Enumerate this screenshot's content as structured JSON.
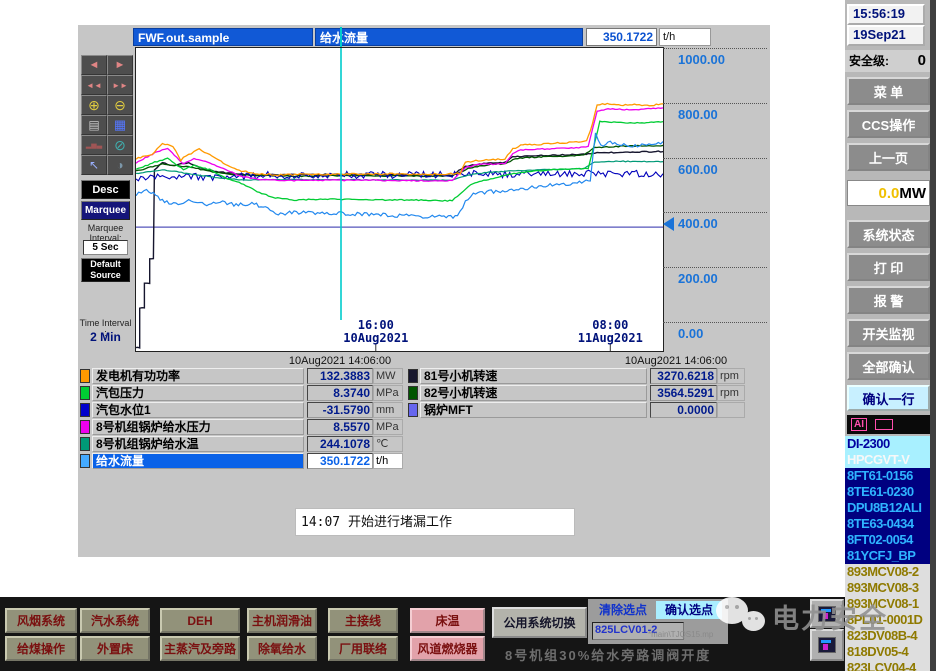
{
  "header": {
    "source": "FWF.out.sample",
    "tag": "给水流量",
    "value": "350.1722",
    "unit": "t/h"
  },
  "toolbar": {
    "icons": [
      {
        "name": "step-back-icon",
        "glyph": "◄",
        "color": "#e08585",
        "size": 11
      },
      {
        "name": "step-forward-icon",
        "glyph": "►",
        "color": "#e08585",
        "size": 11
      },
      {
        "name": "fast-back-icon",
        "glyph": "◄◄",
        "color": "#e08585",
        "size": 8
      },
      {
        "name": "fast-forward-icon",
        "glyph": "►►",
        "color": "#e08585",
        "size": 8
      },
      {
        "name": "zoom-in-icon",
        "glyph": "⊕",
        "color": "#e0cc40",
        "size": 14
      },
      {
        "name": "zoom-out-icon",
        "glyph": "⊖",
        "color": "#e0cc40",
        "size": 14
      },
      {
        "name": "snapshot-icon",
        "glyph": "▤",
        "color": "#c8c8c8",
        "size": 12
      },
      {
        "name": "table-view-icon",
        "glyph": "▦",
        "color": "#5577ff",
        "size": 13
      },
      {
        "name": "histogram-icon",
        "glyph": "▂▅▃",
        "color": "#a05555",
        "size": 7
      },
      {
        "name": "disable-icon",
        "glyph": "⊘",
        "color": "#3fb0b0",
        "size": 14
      },
      {
        "name": "pointer-icon",
        "glyph": "↖",
        "color": "#9ab0ff",
        "size": 12
      },
      {
        "name": "audio-icon",
        "glyph": "◑",
        "color": "#7b96a8",
        "size": 12
      }
    ],
    "desc": "Desc",
    "marquee": "Marquee",
    "marquee_interval_label": "Marquee Interval:",
    "marquee_interval": "5 Sec",
    "default_source": "Default Source",
    "time_interval_label": "Time Interval :",
    "time_interval": "2 Min"
  },
  "chart_data": {
    "type": "line",
    "ylim": [
      0,
      1000
    ],
    "y_ticks": [
      {
        "v": 1000,
        "label": "1000.00"
      },
      {
        "v": 800,
        "label": "800.00"
      },
      {
        "v": 600,
        "label": "600.00"
      },
      {
        "v": 400,
        "label": "400.00"
      },
      {
        "v": 200,
        "label": "200.00"
      },
      {
        "v": 0,
        "label": "0.00"
      }
    ],
    "marker_value": 400,
    "cursor_x": 0.389,
    "cursor_color": "#00cccc",
    "x_ticks": [
      {
        "pos": 0.455,
        "time": "16:00",
        "date": "10Aug2021"
      },
      {
        "pos": 0.9,
        "time": "08:00",
        "date": "11Aug2021"
      }
    ],
    "footer_times": [
      "10Aug2021  14:06:00",
      "10Aug2021  14:06:00"
    ],
    "series": [
      {
        "name": "锅炉MFT",
        "color": "#5555bb",
        "noise": 0,
        "width": 1.3,
        "points": [
          [
            0,
            350
          ],
          [
            1,
            350
          ]
        ]
      },
      {
        "name": "81号小机转速",
        "color": "#16162e",
        "noise": 2,
        "width": 1.4,
        "points": [
          [
            0,
            -90
          ],
          [
            0.007,
            -90
          ],
          [
            0.007,
            55
          ],
          [
            0.016,
            55
          ],
          [
            0.016,
            145
          ],
          [
            0.026,
            145
          ],
          [
            0.026,
            235
          ],
          [
            0.033,
            235
          ],
          [
            0.035,
            560
          ],
          [
            0.05,
            585
          ],
          [
            0.07,
            575
          ],
          [
            0.1,
            585
          ],
          [
            0.13,
            560
          ],
          [
            0.17,
            548
          ],
          [
            0.22,
            540
          ],
          [
            0.3,
            541
          ],
          [
            0.4,
            543
          ],
          [
            0.5,
            541
          ],
          [
            0.6,
            540
          ],
          [
            0.625,
            572
          ],
          [
            0.66,
            582
          ],
          [
            0.7,
            586
          ],
          [
            0.715,
            607
          ],
          [
            0.76,
            611
          ],
          [
            0.8,
            613
          ],
          [
            0.85,
            616
          ],
          [
            0.862,
            618
          ],
          [
            0.875,
            621
          ],
          [
            0.92,
            623
          ],
          [
            1,
            626
          ]
        ]
      },
      {
        "name": "82号小机转速",
        "color": "#005500",
        "noise": 2,
        "width": 1.3,
        "points": [
          [
            0,
            555
          ],
          [
            0.05,
            580
          ],
          [
            0.1,
            570
          ],
          [
            0.15,
            550
          ],
          [
            0.2,
            540
          ],
          [
            0.3,
            536
          ],
          [
            0.4,
            538
          ],
          [
            0.5,
            537
          ],
          [
            0.6,
            536
          ],
          [
            0.63,
            565
          ],
          [
            0.67,
            578
          ],
          [
            0.7,
            582
          ],
          [
            0.72,
            600
          ],
          [
            0.76,
            606
          ],
          [
            0.8,
            608
          ],
          [
            0.85,
            612
          ],
          [
            0.87,
            640
          ],
          [
            0.92,
            645
          ],
          [
            1,
            648
          ]
        ]
      },
      {
        "name": "汽包水位1",
        "color": "#0000bb",
        "noise": 13,
        "width": 1.1,
        "points": [
          [
            0,
            520
          ],
          [
            0.05,
            540
          ],
          [
            0.1,
            535
          ],
          [
            0.15,
            530
          ],
          [
            0.2,
            535
          ],
          [
            0.25,
            540
          ],
          [
            0.3,
            538
          ],
          [
            0.35,
            540
          ],
          [
            0.4,
            540
          ],
          [
            0.45,
            541
          ],
          [
            0.5,
            540
          ],
          [
            0.55,
            542
          ],
          [
            0.6,
            540
          ],
          [
            0.65,
            545
          ],
          [
            0.7,
            542
          ],
          [
            0.75,
            544
          ],
          [
            0.8,
            543
          ],
          [
            0.85,
            545
          ],
          [
            0.9,
            543
          ],
          [
            0.95,
            546
          ],
          [
            1,
            545
          ]
        ]
      },
      {
        "name": "8号机组锅炉给水温",
        "color": "#009977",
        "noise": 1.5,
        "width": 1.2,
        "points": [
          [
            0,
            545
          ],
          [
            0.05,
            560
          ],
          [
            0.1,
            545
          ],
          [
            0.15,
            532
          ],
          [
            0.2,
            522
          ],
          [
            0.3,
            524
          ],
          [
            0.4,
            523
          ],
          [
            0.5,
            522
          ],
          [
            0.6,
            521
          ],
          [
            0.63,
            540
          ],
          [
            0.67,
            550
          ],
          [
            0.72,
            556
          ],
          [
            0.78,
            560
          ],
          [
            0.85,
            563
          ],
          [
            0.87,
            588
          ],
          [
            0.92,
            590
          ],
          [
            1,
            589
          ]
        ]
      },
      {
        "name": "汽包压力",
        "color": "#00cc33",
        "noise": 2,
        "width": 1.3,
        "points": [
          [
            0,
            560
          ],
          [
            0.04,
            590
          ],
          [
            0.06,
            600
          ],
          [
            0.09,
            560
          ],
          [
            0.11,
            575
          ],
          [
            0.14,
            560
          ],
          [
            0.17,
            530
          ],
          [
            0.2,
            510
          ],
          [
            0.23,
            480
          ],
          [
            0.26,
            458
          ],
          [
            0.3,
            448
          ],
          [
            0.35,
            452
          ],
          [
            0.45,
            450
          ],
          [
            0.55,
            448
          ],
          [
            0.6,
            446
          ],
          [
            0.62,
            480
          ],
          [
            0.635,
            505
          ],
          [
            0.66,
            520
          ],
          [
            0.7,
            540
          ],
          [
            0.73,
            548
          ],
          [
            0.76,
            555
          ],
          [
            0.8,
            560
          ],
          [
            0.84,
            563
          ],
          [
            0.858,
            565
          ],
          [
            0.868,
            640
          ],
          [
            0.88,
            735
          ],
          [
            0.92,
            732
          ],
          [
            0.96,
            730
          ],
          [
            1,
            735
          ]
        ]
      },
      {
        "name": "8号机组锅炉给水压力",
        "color": "#ee00ee",
        "noise": 2,
        "width": 1.3,
        "points": [
          [
            0,
            585
          ],
          [
            0.04,
            625
          ],
          [
            0.06,
            638
          ],
          [
            0.09,
            580
          ],
          [
            0.11,
            600
          ],
          [
            0.14,
            585
          ],
          [
            0.17,
            560
          ],
          [
            0.2,
            535
          ],
          [
            0.24,
            522
          ],
          [
            0.3,
            520
          ],
          [
            0.4,
            521
          ],
          [
            0.5,
            520
          ],
          [
            0.6,
            519
          ],
          [
            0.625,
            568
          ],
          [
            0.65,
            578
          ],
          [
            0.7,
            582
          ],
          [
            0.715,
            620
          ],
          [
            0.73,
            632
          ],
          [
            0.78,
            636
          ],
          [
            0.84,
            640
          ],
          [
            0.858,
            645
          ],
          [
            0.875,
            775
          ],
          [
            0.9,
            782
          ],
          [
            0.94,
            778
          ],
          [
            1,
            785
          ]
        ]
      },
      {
        "name": "发电机有功功率",
        "color": "#ff9900",
        "noise": 3,
        "width": 1.3,
        "points": [
          [
            0,
            600
          ],
          [
            0.03,
            615
          ],
          [
            0.05,
            655
          ],
          [
            0.07,
            645
          ],
          [
            0.085,
            595
          ],
          [
            0.1,
            615
          ],
          [
            0.12,
            635
          ],
          [
            0.14,
            615
          ],
          [
            0.17,
            580
          ],
          [
            0.2,
            555
          ],
          [
            0.23,
            545
          ],
          [
            0.27,
            540
          ],
          [
            0.32,
            542
          ],
          [
            0.4,
            543
          ],
          [
            0.5,
            544
          ],
          [
            0.58,
            543
          ],
          [
            0.615,
            545
          ],
          [
            0.625,
            585
          ],
          [
            0.64,
            592
          ],
          [
            0.66,
            595
          ],
          [
            0.7,
            598
          ],
          [
            0.715,
            635
          ],
          [
            0.73,
            648
          ],
          [
            0.76,
            652
          ],
          [
            0.8,
            657
          ],
          [
            0.84,
            660
          ],
          [
            0.855,
            663
          ],
          [
            0.862,
            700
          ],
          [
            0.875,
            795
          ],
          [
            0.89,
            800
          ],
          [
            0.92,
            795
          ],
          [
            0.95,
            798
          ],
          [
            0.97,
            793
          ],
          [
            1,
            800
          ]
        ]
      },
      {
        "name": "给水流量",
        "color": "#2288ee",
        "noise": 7,
        "width": 1.2,
        "points": [
          [
            0,
            470
          ],
          [
            0.02,
            490
          ],
          [
            0.05,
            445
          ],
          [
            0.08,
            430
          ],
          [
            0.1,
            455
          ],
          [
            0.13,
            430
          ],
          [
            0.16,
            445
          ],
          [
            0.19,
            430
          ],
          [
            0.22,
            435
          ],
          [
            0.25,
            420
          ],
          [
            0.27,
            398
          ],
          [
            0.3,
            405
          ],
          [
            0.34,
            400
          ],
          [
            0.38,
            402
          ],
          [
            0.42,
            398
          ],
          [
            0.46,
            396
          ],
          [
            0.5,
            392
          ],
          [
            0.54,
            390
          ],
          [
            0.58,
            388
          ],
          [
            0.61,
            386
          ],
          [
            0.625,
            440
          ],
          [
            0.64,
            468
          ],
          [
            0.67,
            480
          ],
          [
            0.7,
            483
          ],
          [
            0.73,
            488
          ],
          [
            0.76,
            498
          ],
          [
            0.79,
            505
          ],
          [
            0.82,
            508
          ],
          [
            0.85,
            515
          ],
          [
            0.862,
            520
          ],
          [
            0.872,
            690
          ],
          [
            0.882,
            645
          ],
          [
            0.9,
            658
          ],
          [
            0.93,
            650
          ],
          [
            0.96,
            648
          ],
          [
            1,
            662
          ]
        ]
      }
    ]
  },
  "legend": {
    "left": [
      {
        "name": "发电机有功功率",
        "value": "132.3883",
        "unit": "MW",
        "color": "#ff9900",
        "selected": false
      },
      {
        "name": "汽包压力",
        "value": "8.3740",
        "unit": "MPa",
        "color": "#00cc33",
        "selected": false
      },
      {
        "name": "汽包水位1",
        "value": "-31.5790",
        "unit": "mm",
        "color": "#0000cc",
        "selected": false
      },
      {
        "name": "8号机组锅炉给水压力",
        "value": "8.5570",
        "unit": "MPa",
        "color": "#ee00ee",
        "selected": false
      },
      {
        "name": "8号机组锅炉给水温",
        "value": "244.1078",
        "unit": "℃",
        "color": "#009977",
        "selected": false
      },
      {
        "name": "给水流量",
        "value": "350.1722",
        "unit": "t/h",
        "color": "#44aaff",
        "selected": true
      }
    ],
    "right": [
      {
        "name": "81号小机转速",
        "value": "3270.6218",
        "unit": "rpm",
        "color": "#16162e",
        "selected": false
      },
      {
        "name": "82号小机转速",
        "value": "3564.5291",
        "unit": "rpm",
        "color": "#005500",
        "selected": false
      },
      {
        "name": "锅炉MFT",
        "value": "0.0000",
        "unit": "",
        "color": "#6666ee",
        "selected": false
      }
    ]
  },
  "annotation": "14:07 开始进行堵漏工作",
  "nav": {
    "row1": [
      {
        "label": "风烟系统",
        "pink": false
      },
      {
        "label": "汽水系统",
        "pink": false
      },
      {
        "label": "DEH",
        "pink": false
      },
      {
        "label": "主机润滑油",
        "pink": false
      },
      {
        "label": "主接线",
        "pink": false
      },
      {
        "label": "床温",
        "pink": true
      }
    ],
    "row2": [
      {
        "label": "给煤操作",
        "pink": false
      },
      {
        "label": "外置床",
        "pink": false
      },
      {
        "label": "主蒸汽及旁路",
        "pink": false
      },
      {
        "label": "除氧给水",
        "pink": false
      },
      {
        "label": "厂用联络",
        "pink": false
      },
      {
        "label": "风道燃烧器",
        "pink": true
      }
    ],
    "switch_button": "公用系统切换",
    "clear_button": "清除选点",
    "confirm_button": "确认选点",
    "tag_field": "825LCV01-2",
    "path_text": "*main\\TJQS15.mp",
    "status_text": "8号机组30%给水旁路调阀开度"
  },
  "sidebar": {
    "time": "15:56:19",
    "date": "19Sep21",
    "security_label": "安全级:",
    "security_value": "0",
    "buttons_top": [
      "菜 单",
      "CCS操作",
      "上一页"
    ],
    "mw_value": "0.0",
    "mw_unit": "MW",
    "buttons_mid": [
      "系统状态",
      "打 印",
      "报 警",
      "开关监视",
      "全部确认"
    ],
    "confirm_row": "确认一行",
    "ai_badge": "AI",
    "alarm_cyan": [
      "DI-2300",
      "HPCGVT-V"
    ],
    "alarm_navy": [
      "8FT61-0156",
      "8TE61-0230",
      "DPU8B12ALI",
      "8TE63-0434",
      "8FT02-0054",
      "81YCFJ_BP"
    ],
    "alarm_olive": [
      "893MCV08-2",
      "893MCV08-3",
      "893MCV08-1",
      "8PL01-0001D",
      "823DV08B-4",
      "818DV05-4",
      "823LCV04-4"
    ]
  },
  "watermark": "电力安全"
}
